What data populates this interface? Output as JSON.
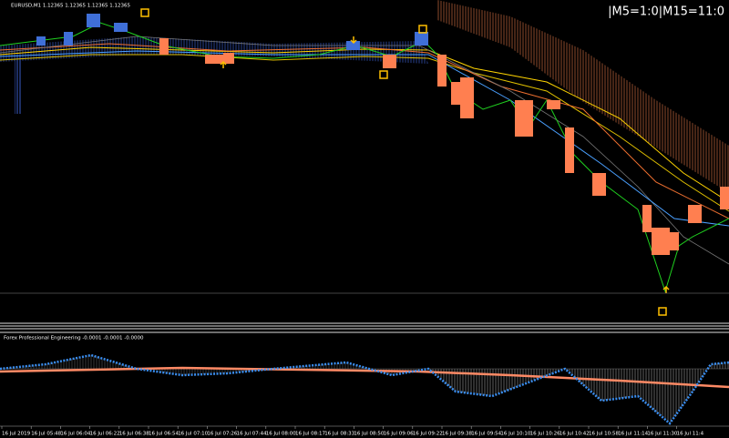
{
  "header": {
    "symbol": "EURUSD,M1 1.12365 1.12365 1.12365 1.12365",
    "status": "|M5=1:0|M15=11:0"
  },
  "indicator": {
    "label": "Forex Professional Engineering -0.0001 -0.0001 -0.0000"
  },
  "time_axis": [
    "16 Jul 2019",
    "16 Jul 05:48",
    "16 Jul 06:04",
    "16 Jul 06:22",
    "16 Jul 06:38",
    "16 Jul 06:54",
    "16 Jul 07:10",
    "16 Jul 07:26",
    "16 Jul 07:44",
    "16 Jul 08:00",
    "16 Jul 08:17",
    "16 Jul 08:33",
    "16 Jul 08:50",
    "16 Jul 09:06",
    "16 Jul 09:22",
    "16 Jul 09:38",
    "16 Jul 09:54",
    "16 Jul 10:10",
    "16 Jul 10:26",
    "16 Jul 10:42",
    "16 Jul 10:58",
    "16 Jul 11:14",
    "16 Jul 11:30",
    "16 Jul 11:4"
  ]
}
